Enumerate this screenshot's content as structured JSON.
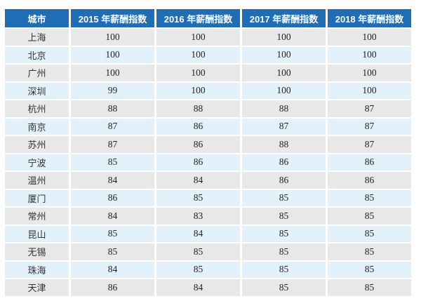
{
  "colors": {
    "header_bg": "#1e6db5",
    "header_text": "#ffffff",
    "row_gray": "#e8e8e8",
    "row_blue": "#e3f1fb",
    "cell_text": "#333333",
    "page_bg": "#ffffff"
  },
  "table": {
    "header": {
      "city_label": "城市",
      "year_columns": [
        "2015 年薪酬指数",
        "2016 年薪酬指数",
        "2017 年薪酬指数",
        "2018 年薪酬指数"
      ]
    },
    "rows": [
      {
        "city": "上海",
        "values": [
          100,
          100,
          100,
          100
        ]
      },
      {
        "city": "北京",
        "values": [
          100,
          100,
          100,
          100
        ]
      },
      {
        "city": "广州",
        "values": [
          100,
          100,
          100,
          100
        ]
      },
      {
        "city": "深圳",
        "values": [
          99,
          100,
          100,
          100
        ]
      },
      {
        "city": "杭州",
        "values": [
          88,
          88,
          88,
          87
        ]
      },
      {
        "city": "南京",
        "values": [
          87,
          86,
          87,
          87
        ]
      },
      {
        "city": "苏州",
        "values": [
          87,
          86,
          88,
          87
        ]
      },
      {
        "city": "宁波",
        "values": [
          85,
          86,
          86,
          86
        ]
      },
      {
        "city": "温州",
        "values": [
          84,
          84,
          86,
          86
        ]
      },
      {
        "city": "厦门",
        "values": [
          86,
          85,
          85,
          85
        ]
      },
      {
        "city": "常州",
        "values": [
          84,
          83,
          85,
          85
        ]
      },
      {
        "city": "昆山",
        "values": [
          85,
          84,
          85,
          85
        ]
      },
      {
        "city": "无锡",
        "values": [
          85,
          85,
          85,
          85
        ]
      },
      {
        "city": "珠海",
        "values": [
          84,
          85,
          85,
          85
        ]
      },
      {
        "city": "天津",
        "values": [
          86,
          84,
          85,
          85
        ]
      }
    ]
  },
  "chart_data": {
    "type": "table",
    "title": "",
    "columns": [
      "城市",
      "2015 年薪酬指数",
      "2016 年薪酬指数",
      "2017 年薪酬指数",
      "2018 年薪酬指数"
    ],
    "categories": [
      "上海",
      "北京",
      "广州",
      "深圳",
      "杭州",
      "南京",
      "苏州",
      "宁波",
      "温州",
      "厦门",
      "常州",
      "昆山",
      "无锡",
      "珠海",
      "天津"
    ],
    "series": [
      {
        "name": "2015 年薪酬指数",
        "values": [
          100,
          100,
          100,
          99,
          88,
          87,
          87,
          85,
          84,
          86,
          84,
          85,
          85,
          84,
          86
        ]
      },
      {
        "name": "2016 年薪酬指数",
        "values": [
          100,
          100,
          100,
          100,
          88,
          86,
          86,
          86,
          84,
          85,
          83,
          84,
          85,
          85,
          84
        ]
      },
      {
        "name": "2017 年薪酬指数",
        "values": [
          100,
          100,
          100,
          100,
          88,
          87,
          88,
          86,
          86,
          85,
          85,
          85,
          85,
          85,
          85
        ]
      },
      {
        "name": "2018 年薪酬指数",
        "values": [
          100,
          100,
          100,
          100,
          87,
          87,
          87,
          86,
          86,
          85,
          85,
          85,
          85,
          85,
          85
        ]
      }
    ],
    "layout": {
      "header_position": "top",
      "striped_rows": true,
      "legend": "none",
      "grid": "cell-gaps"
    }
  }
}
